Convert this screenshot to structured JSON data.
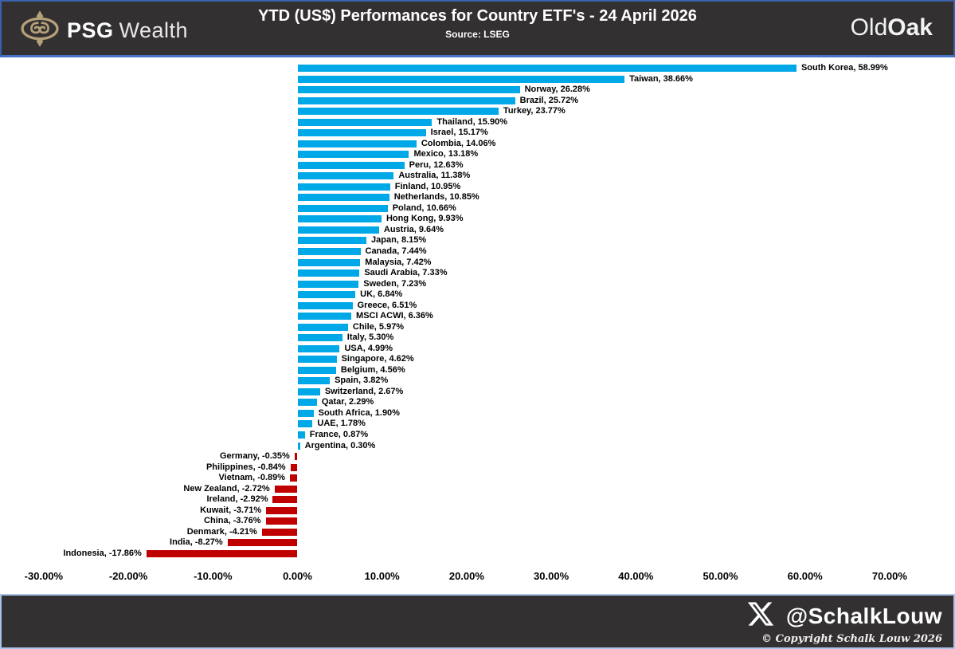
{
  "header": {
    "brand_bold": "PSG",
    "brand_light": "Wealth",
    "title": "YTD (US$) Performances for Country ETF's - 24 April 2026",
    "subtitle": "Source: LSEG",
    "right_brand_part1": "Old",
    "right_brand_part2": "Oak"
  },
  "chart_data": {
    "type": "bar",
    "orientation": "horizontal",
    "title": "YTD (US$) Performances for Country ETF's - 24 April 2026",
    "source": "Source: LSEG",
    "xlim": [
      -30,
      70
    ],
    "grid": false,
    "positive_color": "#00a8e8",
    "negative_color": "#c00000",
    "x_ticks": [
      {
        "value": -30,
        "label": "-30.00%"
      },
      {
        "value": -20,
        "label": "-20.00%"
      },
      {
        "value": -10,
        "label": "-10.00%"
      },
      {
        "value": 0,
        "label": "0.00%"
      },
      {
        "value": 10,
        "label": "10.00%"
      },
      {
        "value": 20,
        "label": "20.00%"
      },
      {
        "value": 30,
        "label": "30.00%"
      },
      {
        "value": 40,
        "label": "40.00%"
      },
      {
        "value": 50,
        "label": "50.00%"
      },
      {
        "value": 60,
        "label": "60.00%"
      },
      {
        "value": 70,
        "label": "70.00%"
      }
    ],
    "points": [
      {
        "label": "South Korea",
        "value": 58.99,
        "display": "South Korea, 58.99%"
      },
      {
        "label": "Taiwan",
        "value": 38.66,
        "display": "Taiwan, 38.66%"
      },
      {
        "label": "Norway",
        "value": 26.28,
        "display": "Norway, 26.28%"
      },
      {
        "label": "Brazil",
        "value": 25.72,
        "display": "Brazil, 25.72%"
      },
      {
        "label": "Turkey",
        "value": 23.77,
        "display": "Turkey, 23.77%"
      },
      {
        "label": "Thailand",
        "value": 15.9,
        "display": "Thailand, 15.90%"
      },
      {
        "label": "Israel",
        "value": 15.17,
        "display": "Israel, 15.17%"
      },
      {
        "label": "Colombia",
        "value": 14.06,
        "display": "Colombia, 14.06%"
      },
      {
        "label": "Mexico",
        "value": 13.18,
        "display": "Mexico, 13.18%"
      },
      {
        "label": "Peru",
        "value": 12.63,
        "display": "Peru, 12.63%"
      },
      {
        "label": "Australia",
        "value": 11.38,
        "display": "Australia, 11.38%"
      },
      {
        "label": "Finland",
        "value": 10.95,
        "display": "Finland, 10.95%"
      },
      {
        "label": "Netherlands",
        "value": 10.85,
        "display": "Netherlands, 10.85%"
      },
      {
        "label": "Poland",
        "value": 10.66,
        "display": "Poland, 10.66%"
      },
      {
        "label": "Hong Kong",
        "value": 9.93,
        "display": "Hong Kong, 9.93%"
      },
      {
        "label": "Austria",
        "value": 9.64,
        "display": "Austria, 9.64%"
      },
      {
        "label": "Japan",
        "value": 8.15,
        "display": "Japan, 8.15%"
      },
      {
        "label": "Canada",
        "value": 7.44,
        "display": "Canada, 7.44%"
      },
      {
        "label": "Malaysia",
        "value": 7.42,
        "display": "Malaysia, 7.42%"
      },
      {
        "label": "Saudi Arabia",
        "value": 7.33,
        "display": "Saudi Arabia, 7.33%"
      },
      {
        "label": "Sweden",
        "value": 7.23,
        "display": "Sweden, 7.23%"
      },
      {
        "label": "UK",
        "value": 6.84,
        "display": "UK, 6.84%"
      },
      {
        "label": "Greece",
        "value": 6.51,
        "display": "Greece, 6.51%"
      },
      {
        "label": "MSCI ACWI",
        "value": 6.36,
        "display": "MSCI ACWI, 6.36%"
      },
      {
        "label": "Chile",
        "value": 5.97,
        "display": "Chile, 5.97%"
      },
      {
        "label": "Italy",
        "value": 5.3,
        "display": "Italy, 5.30%"
      },
      {
        "label": "USA",
        "value": 4.99,
        "display": "USA, 4.99%"
      },
      {
        "label": "Singapore",
        "value": 4.62,
        "display": "Singapore, 4.62%"
      },
      {
        "label": "Belgium",
        "value": 4.56,
        "display": "Belgium, 4.56%"
      },
      {
        "label": "Spain",
        "value": 3.82,
        "display": "Spain, 3.82%"
      },
      {
        "label": "Switzerland",
        "value": 2.67,
        "display": "Switzerland, 2.67%"
      },
      {
        "label": "Qatar",
        "value": 2.29,
        "display": "Qatar, 2.29%"
      },
      {
        "label": "South Africa",
        "value": 1.9,
        "display": "South Africa, 1.90%"
      },
      {
        "label": "UAE",
        "value": 1.78,
        "display": "UAE, 1.78%"
      },
      {
        "label": "France",
        "value": 0.87,
        "display": "France, 0.87%"
      },
      {
        "label": "Argentina",
        "value": 0.3,
        "display": "Argentina, 0.30%"
      },
      {
        "label": "Germany",
        "value": -0.35,
        "display": "Germany, -0.35%"
      },
      {
        "label": "Philippines",
        "value": -0.84,
        "display": "Philippines, -0.84%"
      },
      {
        "label": "Vietnam",
        "value": -0.89,
        "display": "Vietnam, -0.89%"
      },
      {
        "label": "New Zealand",
        "value": -2.72,
        "display": "New Zealand, -2.72%"
      },
      {
        "label": "Ireland",
        "value": -2.92,
        "display": "Ireland, -2.92%"
      },
      {
        "label": "Kuwait",
        "value": -3.71,
        "display": "Kuwait, -3.71%"
      },
      {
        "label": "China",
        "value": -3.76,
        "display": "China, -3.76%"
      },
      {
        "label": "Denmark",
        "value": -4.21,
        "display": "Denmark, -4.21%"
      },
      {
        "label": "India",
        "value": -8.27,
        "display": "India, -8.27%"
      },
      {
        "label": "Indonesia",
        "value": -17.86,
        "display": "Indonesia, -17.86%"
      }
    ]
  },
  "footer": {
    "handle": "@SchalkLouw",
    "copyright": "© Copyright Schalk Louw 2026"
  }
}
